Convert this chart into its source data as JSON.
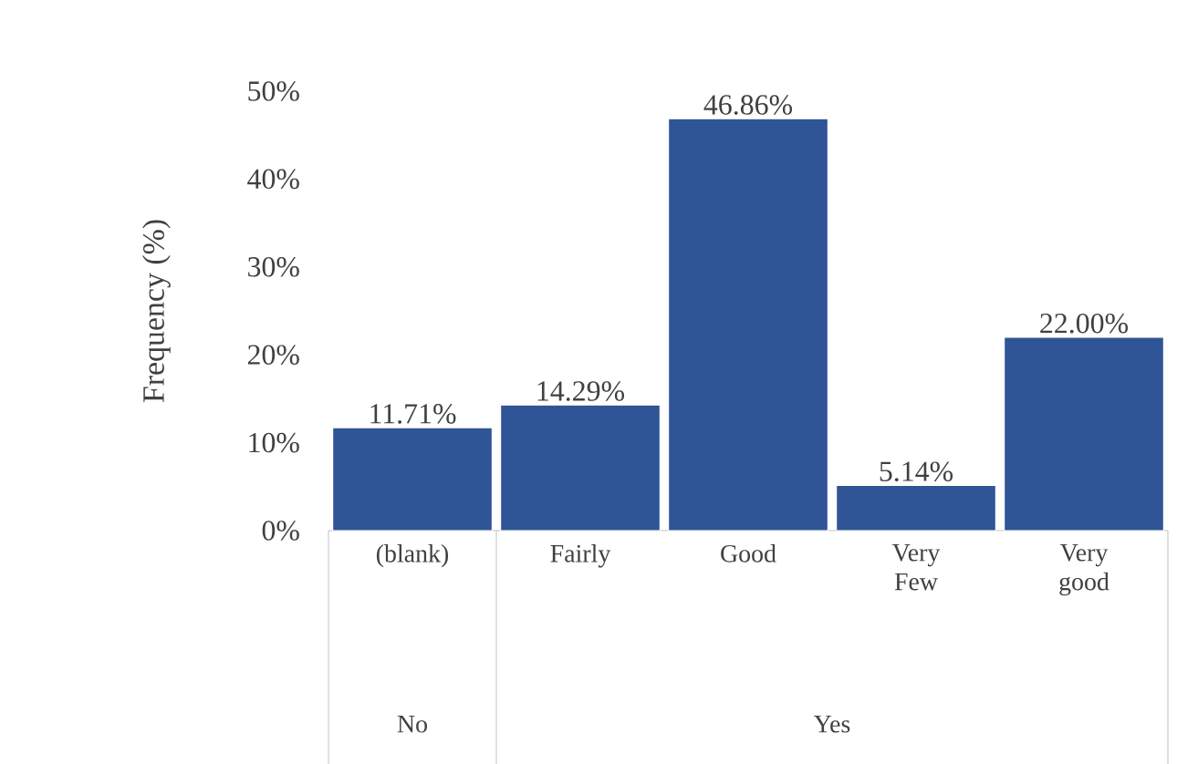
{
  "chart_data": {
    "type": "bar",
    "ylabel": "Frequency (%)",
    "categories": [
      "(blank)",
      "Fairly",
      "Good",
      "Very Few",
      "Very good"
    ],
    "values": [
      11.71,
      14.29,
      46.86,
      5.14,
      22.0
    ],
    "value_labels": [
      "11.71%",
      "14.29%",
      "46.86%",
      "5.14%",
      "22.00%"
    ],
    "color": "#2f5597",
    "ylim": [
      0,
      50
    ],
    "yticks": [
      {
        "value": 0,
        "label": "0%"
      },
      {
        "value": 10,
        "label": "10%"
      },
      {
        "value": 20,
        "label": "20%"
      },
      {
        "value": 30,
        "label": "30%"
      },
      {
        "value": 40,
        "label": "40%"
      },
      {
        "value": 50,
        "label": "50%"
      }
    ],
    "annotations": [
      "No",
      "Yes"
    ],
    "grid": false
  }
}
